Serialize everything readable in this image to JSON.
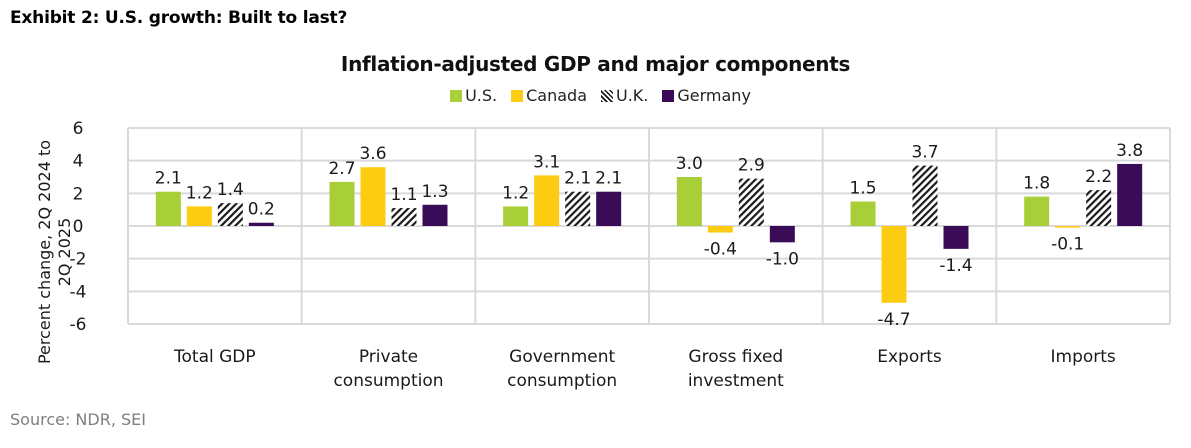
{
  "exhibit_title": "Exhibit 2: U.S. growth: Built to last?",
  "source": "Source: NDR, SEI",
  "colors": {
    "us": "#a8ce38",
    "canada": "#fccc10",
    "uk_stripe": "#1a1a1a",
    "germany": "#3a0c58",
    "grid": "#d9d9d9"
  },
  "chart_data": {
    "type": "bar",
    "title": "Inflation-adjusted GDP and major components",
    "xlabel": "",
    "ylabel": "Percent change, 2Q 2024 to 2Q 2025",
    "ylabel_lines": [
      "Percent change, 2Q 2024 to",
      "2Q 2025"
    ],
    "ylim": [
      -6,
      6
    ],
    "yticks": [
      6,
      4,
      2,
      0,
      -2,
      -4,
      -6
    ],
    "grid": true,
    "legend_position": "top-center",
    "categories": [
      [
        "Total GDP"
      ],
      [
        "Private",
        "consumption"
      ],
      [
        "Government",
        "consumption"
      ],
      [
        "Gross fixed",
        "investment"
      ],
      [
        "Exports"
      ],
      [
        "Imports"
      ]
    ],
    "series": [
      {
        "name": "U.S.",
        "pattern": "solid",
        "color_key": "us",
        "values": [
          2.1,
          2.7,
          1.2,
          3.0,
          1.5,
          1.8
        ],
        "labels": [
          "2.1",
          "2.7",
          "1.2",
          "3.0",
          "1.5",
          "1.8"
        ]
      },
      {
        "name": "Canada",
        "pattern": "solid",
        "color_key": "canada",
        "values": [
          1.2,
          3.6,
          3.1,
          -0.4,
          -4.7,
          -0.1
        ],
        "labels": [
          "1.2",
          "3.6",
          "3.1",
          "-0.4",
          "-4.7",
          "-0.1"
        ]
      },
      {
        "name": "U.K.",
        "pattern": "hatch",
        "color_key": "uk_stripe",
        "values": [
          1.4,
          1.1,
          2.1,
          2.9,
          3.7,
          2.2
        ],
        "labels": [
          "1.4",
          "1.1",
          "2.1",
          "2.9",
          "3.7",
          "2.2"
        ]
      },
      {
        "name": "Germany",
        "pattern": "solid",
        "color_key": "germany",
        "values": [
          0.2,
          1.3,
          2.1,
          -1.0,
          -1.4,
          3.8
        ],
        "labels": [
          "0.2",
          "1.3",
          "2.1",
          "-1.0",
          "-1.4",
          "3.8"
        ]
      }
    ]
  }
}
